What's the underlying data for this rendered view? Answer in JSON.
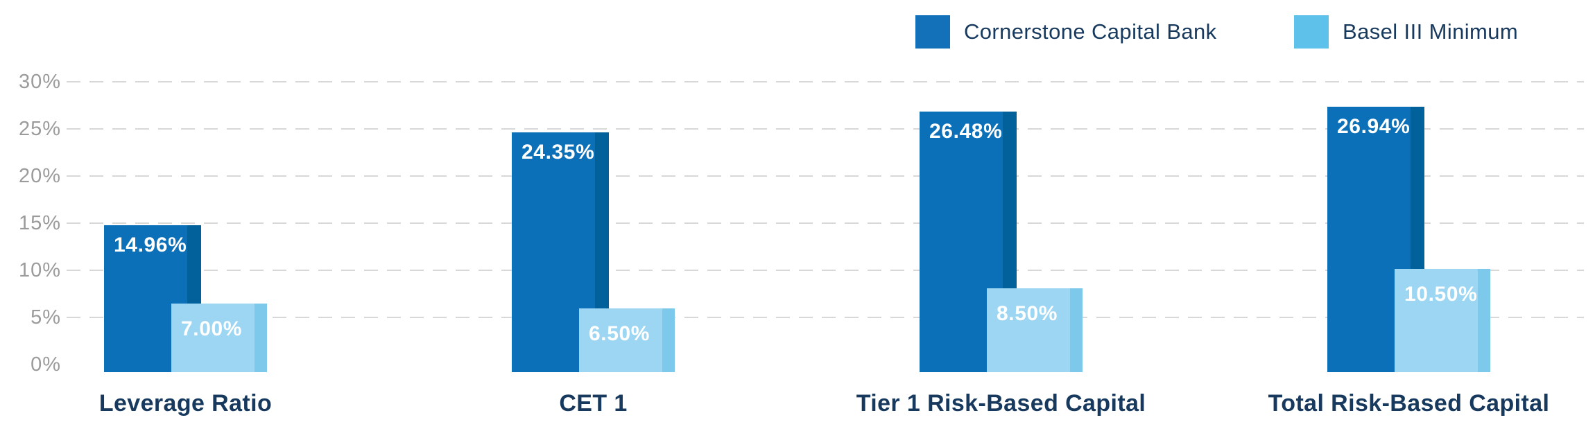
{
  "legend": {
    "items": [
      {
        "label": "Cornerstone Capital Bank",
        "swatch_color": "#1271B8"
      },
      {
        "label": "Basel III Minimum",
        "swatch_color": "#5EC1E9"
      }
    ]
  },
  "chart_data": {
    "type": "bar",
    "title": "",
    "categories": [
      "Leverage Ratio",
      "CET 1",
      "Tier 1 Risk-Based Capital",
      "Total Risk-Based Capital"
    ],
    "series": [
      {
        "name": "Cornerstone Capital Bank",
        "values": [
          14.96,
          24.35,
          26.48,
          26.94
        ],
        "data_labels": [
          "14.96%",
          "24.35%",
          "26.48%",
          "26.94%"
        ],
        "color": "#0C70B8",
        "edge_shade_color": "#02609B"
      },
      {
        "name": "Basel III Minimum",
        "values": [
          7.0,
          6.5,
          8.5,
          10.5
        ],
        "data_labels": [
          "7.00%",
          "6.50%",
          "8.50%",
          "10.50%"
        ],
        "color": "#9DD6F2",
        "edge_shade_color": "#7CC9EC"
      }
    ],
    "y_axis": {
      "tick_labels": [
        "30%",
        "25%",
        "20%",
        "15%",
        "10%",
        "5%",
        "0%"
      ],
      "tick_values": [
        30,
        25,
        20,
        15,
        10,
        5,
        0
      ],
      "range": [
        0,
        30
      ],
      "gridlines": "dashed-horizontal",
      "gridline_color": "#D8D8D8",
      "tick_label_color": "#9B9B9B"
    },
    "value_label_color": "#FFFFFF",
    "category_label_color": "#17395E",
    "legend_position": "top-right"
  }
}
